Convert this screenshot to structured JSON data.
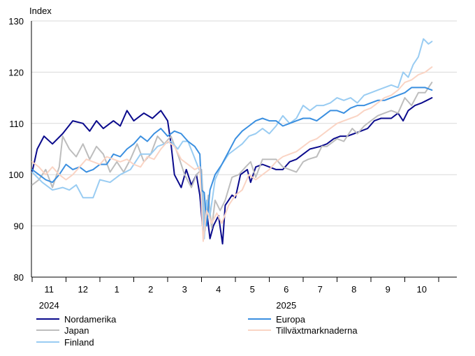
{
  "chart_data": {
    "type": "line",
    "ylabel": "Index",
    "ylim": [
      80,
      130
    ],
    "yticks": [
      80,
      90,
      100,
      110,
      120,
      130
    ],
    "grid": true,
    "month_labels": [
      "11",
      "12",
      "1",
      "2",
      "3",
      "4",
      "5",
      "6",
      "7",
      "8",
      "9",
      "10"
    ],
    "year_labels": [
      {
        "label": "2024",
        "month_index": 0
      },
      {
        "label": "2025",
        "month_index": 7
      }
    ],
    "x_months_range": [
      0,
      12.1
    ],
    "series": [
      {
        "name": "Nordamerika",
        "color": "#0a0a8c",
        "points": [
          [
            0,
            100.5
          ],
          [
            0.15,
            105
          ],
          [
            0.35,
            107.5
          ],
          [
            0.6,
            106
          ],
          [
            0.9,
            108
          ],
          [
            1.2,
            110.5
          ],
          [
            1.5,
            110
          ],
          [
            1.7,
            108.5
          ],
          [
            1.9,
            110.5
          ],
          [
            2.1,
            109
          ],
          [
            2.4,
            110.5
          ],
          [
            2.6,
            109.5
          ],
          [
            2.8,
            112.5
          ],
          [
            3.0,
            110.5
          ],
          [
            3.3,
            112
          ],
          [
            3.55,
            111
          ],
          [
            3.8,
            112.5
          ],
          [
            4.0,
            110.5
          ],
          [
            4.1,
            106
          ],
          [
            4.2,
            100
          ],
          [
            4.4,
            97.5
          ],
          [
            4.55,
            101
          ],
          [
            4.7,
            98
          ],
          [
            4.85,
            100
          ],
          [
            4.95,
            96
          ],
          [
            5.05,
            88.5
          ],
          [
            5.15,
            93
          ],
          [
            5.25,
            87.5
          ],
          [
            5.35,
            90
          ],
          [
            5.5,
            92
          ],
          [
            5.62,
            86.5
          ],
          [
            5.7,
            94
          ],
          [
            5.9,
            96
          ],
          [
            6.0,
            95.5
          ],
          [
            6.15,
            100
          ],
          [
            6.35,
            101
          ],
          [
            6.45,
            98.5
          ],
          [
            6.6,
            101.5
          ],
          [
            6.8,
            102
          ],
          [
            7.0,
            101.5
          ],
          [
            7.2,
            101
          ],
          [
            7.4,
            101
          ],
          [
            7.6,
            102.5
          ],
          [
            7.8,
            103
          ],
          [
            8.0,
            104
          ],
          [
            8.2,
            105
          ],
          [
            8.5,
            105.5
          ],
          [
            8.7,
            106
          ],
          [
            8.9,
            107
          ],
          [
            9.1,
            107.5
          ],
          [
            9.3,
            107.5
          ],
          [
            9.5,
            108
          ],
          [
            9.7,
            108.5
          ],
          [
            9.9,
            109
          ],
          [
            10.1,
            110.5
          ],
          [
            10.3,
            111
          ],
          [
            10.6,
            111
          ],
          [
            10.8,
            112
          ],
          [
            10.95,
            110.5
          ],
          [
            11.1,
            112.5
          ],
          [
            11.3,
            113.5
          ],
          [
            11.5,
            114
          ],
          [
            11.65,
            114.5
          ],
          [
            11.8,
            115
          ]
        ]
      },
      {
        "name": "Japan",
        "color": "#bdbdbd",
        "points": [
          [
            0,
            98
          ],
          [
            0.2,
            99
          ],
          [
            0.4,
            101
          ],
          [
            0.6,
            97.5
          ],
          [
            0.8,
            101.5
          ],
          [
            0.9,
            107.5
          ],
          [
            1.1,
            105
          ],
          [
            1.3,
            103.5
          ],
          [
            1.5,
            106
          ],
          [
            1.7,
            103
          ],
          [
            1.9,
            105.5
          ],
          [
            2.1,
            104
          ],
          [
            2.3,
            100.5
          ],
          [
            2.5,
            102.5
          ],
          [
            2.7,
            100.5
          ],
          [
            2.9,
            103
          ],
          [
            3.1,
            106
          ],
          [
            3.3,
            102.5
          ],
          [
            3.5,
            104
          ],
          [
            3.7,
            107.5
          ],
          [
            3.9,
            106
          ],
          [
            4.1,
            107.5
          ],
          [
            4.3,
            104
          ],
          [
            4.5,
            100
          ],
          [
            4.7,
            97.5
          ],
          [
            4.85,
            100
          ],
          [
            5.0,
            101
          ],
          [
            5.1,
            89
          ],
          [
            5.2,
            96
          ],
          [
            5.3,
            89.5
          ],
          [
            5.4,
            95
          ],
          [
            5.55,
            93
          ],
          [
            5.7,
            95
          ],
          [
            5.9,
            99.5
          ],
          [
            6.1,
            100
          ],
          [
            6.3,
            101.5
          ],
          [
            6.45,
            102.5
          ],
          [
            6.6,
            99.5
          ],
          [
            6.8,
            103
          ],
          [
            7.0,
            103
          ],
          [
            7.2,
            103
          ],
          [
            7.4,
            101.5
          ],
          [
            7.6,
            101
          ],
          [
            7.8,
            100.5
          ],
          [
            8.0,
            102.5
          ],
          [
            8.15,
            103
          ],
          [
            8.4,
            103.5
          ],
          [
            8.55,
            105.5
          ],
          [
            8.7,
            105.5
          ],
          [
            9.0,
            107
          ],
          [
            9.2,
            106.5
          ],
          [
            9.45,
            109
          ],
          [
            9.6,
            108
          ],
          [
            9.8,
            109.5
          ],
          [
            10.0,
            110.5
          ],
          [
            10.2,
            111.5
          ],
          [
            10.4,
            112
          ],
          [
            10.6,
            112.5
          ],
          [
            10.8,
            112
          ],
          [
            11.0,
            115
          ],
          [
            11.2,
            113.5
          ],
          [
            11.4,
            116
          ],
          [
            11.6,
            116
          ],
          [
            11.8,
            118
          ]
        ]
      },
      {
        "name": "Finland",
        "color": "#99ccf2",
        "points": [
          [
            0,
            100.5
          ],
          [
            0.3,
            98.5
          ],
          [
            0.6,
            97
          ],
          [
            0.9,
            97.5
          ],
          [
            1.1,
            97
          ],
          [
            1.3,
            98
          ],
          [
            1.5,
            95.5
          ],
          [
            1.8,
            95.5
          ],
          [
            2.0,
            99
          ],
          [
            2.3,
            98.5
          ],
          [
            2.6,
            100
          ],
          [
            2.9,
            101
          ],
          [
            3.2,
            104
          ],
          [
            3.5,
            104
          ],
          [
            3.7,
            105.5
          ],
          [
            3.9,
            106
          ],
          [
            4.1,
            106.5
          ],
          [
            4.3,
            105
          ],
          [
            4.45,
            106.5
          ],
          [
            4.6,
            106.5
          ],
          [
            4.75,
            104
          ],
          [
            4.9,
            101.5
          ],
          [
            5.0,
            100
          ],
          [
            5.08,
            87.5
          ],
          [
            5.15,
            95
          ],
          [
            5.25,
            92
          ],
          [
            5.4,
            99
          ],
          [
            5.6,
            102
          ],
          [
            5.8,
            104
          ],
          [
            6.0,
            105
          ],
          [
            6.2,
            106
          ],
          [
            6.4,
            107.5
          ],
          [
            6.6,
            108
          ],
          [
            6.8,
            109
          ],
          [
            7.0,
            108
          ],
          [
            7.2,
            109.5
          ],
          [
            7.4,
            111.5
          ],
          [
            7.6,
            110
          ],
          [
            7.8,
            111
          ],
          [
            8.0,
            113.5
          ],
          [
            8.2,
            112.5
          ],
          [
            8.4,
            113.5
          ],
          [
            8.6,
            113.5
          ],
          [
            8.8,
            114
          ],
          [
            9.0,
            115
          ],
          [
            9.2,
            114.5
          ],
          [
            9.4,
            115
          ],
          [
            9.6,
            114
          ],
          [
            9.8,
            115.5
          ],
          [
            10.0,
            116
          ],
          [
            10.2,
            116.5
          ],
          [
            10.4,
            117
          ],
          [
            10.6,
            117.5
          ],
          [
            10.8,
            117
          ],
          [
            10.95,
            120
          ],
          [
            11.1,
            119
          ],
          [
            11.25,
            121.5
          ],
          [
            11.4,
            123
          ],
          [
            11.55,
            126.5
          ],
          [
            11.7,
            125.5
          ],
          [
            11.8,
            126
          ]
        ]
      },
      {
        "name": "Europa",
        "color": "#3a8fe0",
        "points": [
          [
            0,
            101
          ],
          [
            0.2,
            100
          ],
          [
            0.4,
            99
          ],
          [
            0.6,
            98.5
          ],
          [
            0.8,
            100
          ],
          [
            1.0,
            102
          ],
          [
            1.2,
            101
          ],
          [
            1.4,
            101.5
          ],
          [
            1.6,
            100.5
          ],
          [
            1.8,
            101
          ],
          [
            2.0,
            102
          ],
          [
            2.2,
            102
          ],
          [
            2.4,
            104
          ],
          [
            2.6,
            103.5
          ],
          [
            2.8,
            105
          ],
          [
            3.0,
            106
          ],
          [
            3.2,
            107.5
          ],
          [
            3.4,
            106.5
          ],
          [
            3.6,
            108
          ],
          [
            3.8,
            109
          ],
          [
            4.0,
            107.5
          ],
          [
            4.2,
            108.5
          ],
          [
            4.4,
            108
          ],
          [
            4.6,
            106.5
          ],
          [
            4.8,
            105.5
          ],
          [
            4.95,
            104
          ],
          [
            5.0,
            97
          ],
          [
            5.08,
            96.5
          ],
          [
            5.15,
            90
          ],
          [
            5.25,
            97
          ],
          [
            5.4,
            100
          ],
          [
            5.6,
            102
          ],
          [
            5.8,
            104.5
          ],
          [
            6.0,
            107
          ],
          [
            6.2,
            108.5
          ],
          [
            6.4,
            109.5
          ],
          [
            6.6,
            110.5
          ],
          [
            6.8,
            111
          ],
          [
            7.0,
            110.5
          ],
          [
            7.2,
            110.5
          ],
          [
            7.4,
            109.5
          ],
          [
            7.6,
            110
          ],
          [
            7.8,
            110.5
          ],
          [
            8.0,
            111
          ],
          [
            8.2,
            111
          ],
          [
            8.4,
            110.5
          ],
          [
            8.6,
            111.5
          ],
          [
            8.8,
            112.5
          ],
          [
            9.0,
            112.5
          ],
          [
            9.2,
            112
          ],
          [
            9.4,
            113
          ],
          [
            9.6,
            113.5
          ],
          [
            9.8,
            113.5
          ],
          [
            10.0,
            114
          ],
          [
            10.2,
            114.5
          ],
          [
            10.4,
            114.5
          ],
          [
            10.6,
            115
          ],
          [
            10.8,
            115.5
          ],
          [
            11.0,
            116
          ],
          [
            11.2,
            117
          ],
          [
            11.4,
            117
          ],
          [
            11.6,
            117
          ],
          [
            11.8,
            116.5
          ]
        ]
      },
      {
        "name": "Tillväxtmarknaderna",
        "color": "#fad4c4",
        "points": [
          [
            0,
            102.5
          ],
          [
            0.2,
            101.5
          ],
          [
            0.4,
            100
          ],
          [
            0.6,
            101.5
          ],
          [
            0.8,
            100
          ],
          [
            1.0,
            99
          ],
          [
            1.2,
            100
          ],
          [
            1.4,
            101.5
          ],
          [
            1.6,
            103
          ],
          [
            1.8,
            102.5
          ],
          [
            2.0,
            102
          ],
          [
            2.2,
            103.5
          ],
          [
            2.4,
            103
          ],
          [
            2.6,
            102.5
          ],
          [
            2.8,
            103
          ],
          [
            3.0,
            102
          ],
          [
            3.2,
            101.5
          ],
          [
            3.4,
            103.5
          ],
          [
            3.6,
            103
          ],
          [
            3.8,
            105
          ],
          [
            4.0,
            106.5
          ],
          [
            4.2,
            105.5
          ],
          [
            4.4,
            103
          ],
          [
            4.6,
            102
          ],
          [
            4.8,
            101
          ],
          [
            4.95,
            101.5
          ],
          [
            5.05,
            87
          ],
          [
            5.15,
            93
          ],
          [
            5.3,
            90.5
          ],
          [
            5.45,
            92.5
          ],
          [
            5.6,
            90.5
          ],
          [
            5.8,
            94
          ],
          [
            6.0,
            96
          ],
          [
            6.2,
            97
          ],
          [
            6.4,
            100
          ],
          [
            6.6,
            99
          ],
          [
            6.8,
            100
          ],
          [
            7.0,
            101
          ],
          [
            7.2,
            102.5
          ],
          [
            7.4,
            103.5
          ],
          [
            7.6,
            104
          ],
          [
            7.8,
            104.5
          ],
          [
            8.0,
            105.5
          ],
          [
            8.2,
            106.5
          ],
          [
            8.4,
            107
          ],
          [
            8.6,
            108
          ],
          [
            8.8,
            109
          ],
          [
            9.0,
            110
          ],
          [
            9.2,
            110.5
          ],
          [
            9.4,
            111
          ],
          [
            9.6,
            111.5
          ],
          [
            9.8,
            112.5
          ],
          [
            10.0,
            113
          ],
          [
            10.2,
            114
          ],
          [
            10.4,
            115
          ],
          [
            10.6,
            115.5
          ],
          [
            10.8,
            116.5
          ],
          [
            11.0,
            118
          ],
          [
            11.2,
            118.5
          ],
          [
            11.4,
            119.5
          ],
          [
            11.6,
            120
          ],
          [
            11.8,
            121
          ]
        ]
      }
    ],
    "legend": {
      "placement": "bottom",
      "columns": [
        [
          "Nordamerika",
          "Japan",
          "Finland"
        ],
        [
          "Europa",
          "Tillväxtmarknaderna"
        ]
      ]
    }
  }
}
